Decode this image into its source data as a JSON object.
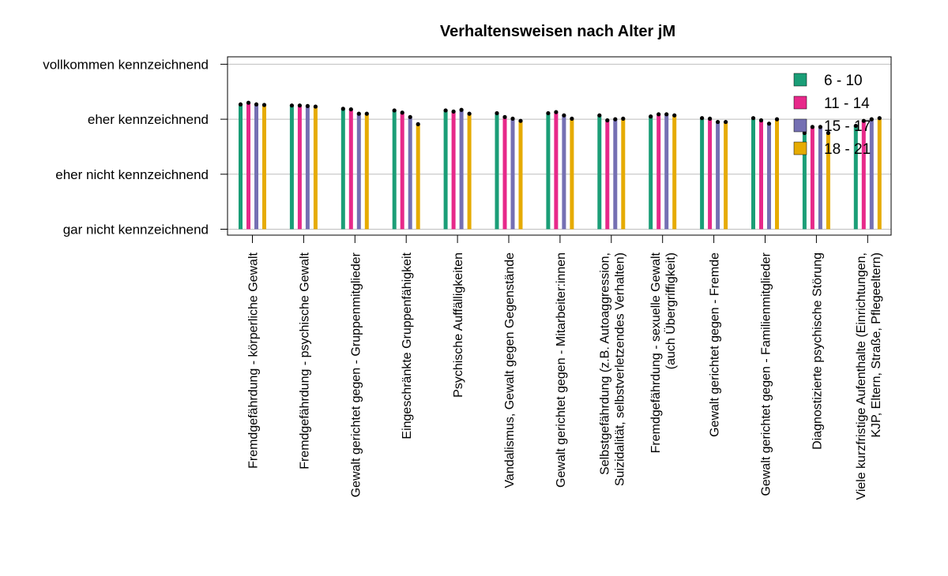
{
  "chart_data": {
    "type": "bar",
    "title": "Verhaltensweisen nach Alter jM",
    "xlabel": "",
    "ylabel": "",
    "ylim": [
      1,
      4
    ],
    "y_ticks": [
      {
        "value": 1,
        "label": "gar nicht kennzeichnend"
      },
      {
        "value": 2,
        "label": "eher nicht kennzeichnend"
      },
      {
        "value": 3,
        "label": "eher kennzeichnend"
      },
      {
        "value": 4,
        "label": "vollkommen kennzeichnend"
      }
    ],
    "grid": "horizontal",
    "legend_position": "top-right",
    "categories": [
      [
        "Fremdgefährdung - körperliche Gewalt"
      ],
      [
        "Fremdgefährdung - psychische Gewalt"
      ],
      [
        "Gewalt gerichtet gegen - Gruppenmitglieder"
      ],
      [
        "Eingeschränkte Gruppenfähigkeit"
      ],
      [
        "Psychische Auffälligkeiten"
      ],
      [
        "Vandalismus, Gewalt gegen Gegenstände"
      ],
      [
        "Gewalt gerichtet gegen - Mitarbeiter:innen"
      ],
      [
        "Selbstgefährdung (z.B. Autoaggression,",
        "Suizidalität, selbstverletzendes Verhalten)"
      ],
      [
        "Fremdgefährdung - sexuelle Gewalt",
        "(auch Übergriffigkeit)"
      ],
      [
        "Gewalt gerichtet gegen - Fremde"
      ],
      [
        "Gewalt gerichtet gegen - Familienmitglieder"
      ],
      [
        "Diagnostizierte psychische Störung"
      ],
      [
        "Viele kurzfristige Aufenthalte (Einrichtungen,",
        "KJP, Eltern, Straße, Pflegeeltern)"
      ]
    ],
    "series": [
      {
        "name": "6 - 10",
        "color": "#1b9e77",
        "values": [
          3.27,
          3.25,
          3.19,
          3.16,
          3.16,
          3.11,
          3.11,
          3.07,
          3.05,
          3.02,
          3.02,
          2.75,
          2.88
        ]
      },
      {
        "name": "11 - 14",
        "color": "#e7298a",
        "values": [
          3.3,
          3.25,
          3.18,
          3.12,
          3.14,
          3.04,
          3.13,
          2.98,
          3.09,
          3.01,
          2.98,
          2.86,
          2.97
        ]
      },
      {
        "name": "15 - 17",
        "color": "#7570b3",
        "values": [
          3.27,
          3.24,
          3.1,
          3.04,
          3.17,
          3.01,
          3.07,
          3.0,
          3.09,
          2.95,
          2.92,
          2.86,
          3.0
        ]
      },
      {
        "name": "18 - 21",
        "color": "#e6ab02",
        "values": [
          3.26,
          3.23,
          3.1,
          2.91,
          3.1,
          2.97,
          3.01,
          3.01,
          3.07,
          2.95,
          3.0,
          2.75,
          3.02
        ]
      }
    ]
  }
}
